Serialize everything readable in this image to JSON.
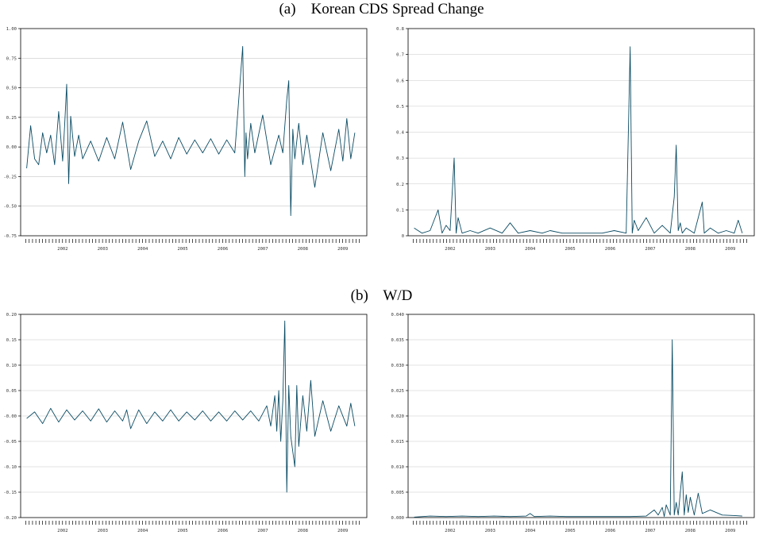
{
  "headings": {
    "a": "(a)    Korean CDS Spread Change",
    "b": "(b)    W/D"
  },
  "series_color": "#0b4b63",
  "chart_data": [
    {
      "id": "a-left",
      "type": "line",
      "title": "",
      "xlabel": "",
      "ylabel": "",
      "grid": true,
      "ylim": [
        -0.75,
        1.0
      ],
      "yticks": [
        "1.00",
        "0.75",
        "0.50",
        "0.25",
        "0.00",
        "-0.25",
        "-0.50",
        "-0.75"
      ],
      "xticks": [
        "2002",
        "2003",
        "2004",
        "2005",
        "2006",
        "2007",
        "2008",
        "2009"
      ],
      "xlim": [
        2001.45,
        2010.1
      ],
      "series": [
        {
          "x": [
            2001.6,
            2001.7,
            2001.8,
            2001.9,
            2002.0,
            2002.1,
            2002.2,
            2002.3,
            2002.4,
            2002.5,
            2002.55,
            2002.6,
            2002.65,
            2002.7,
            2002.8,
            2002.9,
            2003.0,
            2003.2,
            2003.4,
            2003.6,
            2003.8,
            2004.0,
            2004.2,
            2004.4,
            2004.6,
            2004.8,
            2005.0,
            2005.2,
            2005.4,
            2005.6,
            2005.8,
            2006.0,
            2006.2,
            2006.4,
            2006.6,
            2006.8,
            2007.0,
            2007.05,
            2007.08,
            2007.12,
            2007.2,
            2007.3,
            2007.5,
            2007.7,
            2007.9,
            2008.0,
            2008.1,
            2008.15,
            2008.2,
            2008.25,
            2008.3,
            2008.4,
            2008.5,
            2008.6,
            2008.8,
            2009.0,
            2009.2,
            2009.4,
            2009.5,
            2009.6,
            2009.7,
            2009.8
          ],
          "y": [
            -0.18,
            0.18,
            -0.1,
            -0.15,
            0.12,
            -0.05,
            0.1,
            -0.15,
            0.3,
            -0.12,
            0.18,
            0.53,
            -0.31,
            0.26,
            -0.08,
            0.1,
            -0.1,
            0.05,
            -0.12,
            0.08,
            -0.1,
            0.21,
            -0.19,
            0.05,
            0.22,
            -0.08,
            0.05,
            -0.1,
            0.08,
            -0.06,
            0.06,
            -0.05,
            0.07,
            -0.06,
            0.06,
            -0.05,
            0.85,
            -0.25,
            0.12,
            -0.1,
            0.2,
            -0.05,
            0.27,
            -0.15,
            0.1,
            -0.05,
            0.4,
            0.56,
            -0.58,
            0.15,
            -0.1,
            0.2,
            -0.15,
            0.1,
            -0.34,
            0.12,
            -0.2,
            0.15,
            -0.12,
            0.24,
            -0.1,
            0.12
          ]
        }
      ]
    },
    {
      "id": "a-right",
      "type": "line",
      "title": "",
      "xlabel": "",
      "ylabel": "",
      "grid": true,
      "ylim": [
        0,
        0.8
      ],
      "yticks": [
        "0.8",
        "0.7",
        "0.6",
        "0.5",
        "0.4",
        "0.3",
        "0.2",
        "0.1",
        "0"
      ],
      "xticks": [
        "2002",
        "2003",
        "2004",
        "2005",
        "2006",
        "2007",
        "2008",
        "2009"
      ],
      "xlim": [
        2001.45,
        2010.1
      ],
      "series": [
        {
          "x": [
            2001.6,
            2001.8,
            2002.0,
            2002.2,
            2002.3,
            2002.4,
            2002.5,
            2002.6,
            2002.65,
            2002.7,
            2002.8,
            2003.0,
            2003.2,
            2003.5,
            2003.8,
            2004.0,
            2004.2,
            2004.5,
            2004.8,
            2005.0,
            2005.3,
            2005.6,
            2006.0,
            2006.3,
            2006.6,
            2006.9,
            2007.0,
            2007.05,
            2007.1,
            2007.2,
            2007.4,
            2007.6,
            2007.8,
            2008.0,
            2008.1,
            2008.15,
            2008.2,
            2008.25,
            2008.3,
            2008.4,
            2008.6,
            2008.8,
            2008.85,
            2009.0,
            2009.2,
            2009.4,
            2009.6,
            2009.7,
            2009.8
          ],
          "y": [
            0.03,
            0.01,
            0.02,
            0.1,
            0.01,
            0.04,
            0.02,
            0.3,
            0.01,
            0.07,
            0.01,
            0.02,
            0.01,
            0.03,
            0.01,
            0.05,
            0.01,
            0.02,
            0.01,
            0.02,
            0.01,
            0.01,
            0.01,
            0.01,
            0.02,
            0.01,
            0.73,
            0.01,
            0.06,
            0.02,
            0.07,
            0.01,
            0.04,
            0.01,
            0.15,
            0.35,
            0.02,
            0.05,
            0.01,
            0.03,
            0.01,
            0.13,
            0.01,
            0.03,
            0.01,
            0.02,
            0.01,
            0.06,
            0.01
          ]
        }
      ]
    },
    {
      "id": "b-left",
      "type": "line",
      "title": "",
      "xlabel": "",
      "ylabel": "",
      "grid": true,
      "ylim": [
        -0.2,
        0.2
      ],
      "yticks": [
        "0.20",
        "0.15",
        "0.10",
        "0.05",
        "-0.00",
        "-0.05",
        "-0.10",
        "-0.15",
        "-0.20"
      ],
      "xticks": [
        "2002",
        "2003",
        "2004",
        "2005",
        "2006",
        "2007",
        "2008",
        "2009"
      ],
      "xlim": [
        2001.45,
        2010.1
      ],
      "series": [
        {
          "x": [
            2001.6,
            2001.8,
            2002.0,
            2002.2,
            2002.4,
            2002.6,
            2002.8,
            2003.0,
            2003.2,
            2003.4,
            2003.6,
            2003.8,
            2004.0,
            2004.1,
            2004.2,
            2004.4,
            2004.6,
            2004.8,
            2005.0,
            2005.2,
            2005.4,
            2005.6,
            2005.8,
            2006.0,
            2006.2,
            2006.4,
            2006.6,
            2006.8,
            2007.0,
            2007.2,
            2007.4,
            2007.6,
            2007.7,
            2007.8,
            2007.85,
            2007.9,
            2007.95,
            2008.0,
            2008.05,
            2008.1,
            2008.15,
            2008.2,
            2008.3,
            2008.35,
            2008.4,
            2008.5,
            2008.6,
            2008.7,
            2008.8,
            2009.0,
            2009.2,
            2009.4,
            2009.6,
            2009.7,
            2009.8
          ],
          "y": [
            -0.005,
            0.008,
            -0.015,
            0.015,
            -0.012,
            0.012,
            -0.008,
            0.01,
            -0.01,
            0.014,
            -0.012,
            0.01,
            -0.01,
            0.012,
            -0.025,
            0.012,
            -0.015,
            0.008,
            -0.01,
            0.012,
            -0.01,
            0.008,
            -0.008,
            0.01,
            -0.01,
            0.008,
            -0.01,
            0.01,
            -0.008,
            0.01,
            -0.01,
            0.02,
            -0.02,
            0.04,
            -0.03,
            0.05,
            -0.05,
            0.03,
            0.187,
            -0.15,
            0.06,
            -0.04,
            -0.1,
            0.06,
            -0.06,
            0.04,
            -0.03,
            0.07,
            -0.04,
            0.03,
            -0.03,
            0.02,
            -0.02,
            0.025,
            -0.02
          ]
        }
      ]
    },
    {
      "id": "b-right",
      "type": "line",
      "title": "",
      "xlabel": "",
      "ylabel": "",
      "grid": true,
      "ylim": [
        0,
        0.04
      ],
      "yticks": [
        "0.040",
        "0.035",
        "0.030",
        "0.025",
        "0.020",
        "0.015",
        "0.010",
        "0.005",
        "0.000"
      ],
      "xticks": [
        "2002",
        "2003",
        "2004",
        "2005",
        "2006",
        "2007",
        "2008",
        "2009"
      ],
      "xlim": [
        2001.45,
        2010.1
      ],
      "series": [
        {
          "x": [
            2001.6,
            2002.0,
            2002.4,
            2002.8,
            2003.2,
            2003.6,
            2004.0,
            2004.4,
            2004.5,
            2004.6,
            2005.0,
            2005.4,
            2005.8,
            2006.2,
            2006.6,
            2007.0,
            2007.4,
            2007.6,
            2007.7,
            2007.8,
            2007.85,
            2007.9,
            2008.0,
            2008.05,
            2008.1,
            2008.15,
            2008.2,
            2008.3,
            2008.35,
            2008.4,
            2008.45,
            2008.5,
            2008.6,
            2008.7,
            2008.8,
            2009.0,
            2009.3,
            2009.6,
            2009.8
          ],
          "y": [
            0.0001,
            0.0003,
            0.0002,
            0.0003,
            0.0002,
            0.0003,
            0.0002,
            0.0003,
            0.0008,
            0.0002,
            0.0003,
            0.0002,
            0.0002,
            0.0002,
            0.0002,
            0.0002,
            0.0003,
            0.0015,
            0.0005,
            0.002,
            0.0002,
            0.0025,
            0.0005,
            0.035,
            0.0005,
            0.003,
            0.0005,
            0.009,
            0.0005,
            0.0045,
            0.001,
            0.004,
            0.0005,
            0.0048,
            0.0008,
            0.0015,
            0.0005,
            0.0004,
            0.0003
          ]
        }
      ]
    }
  ]
}
